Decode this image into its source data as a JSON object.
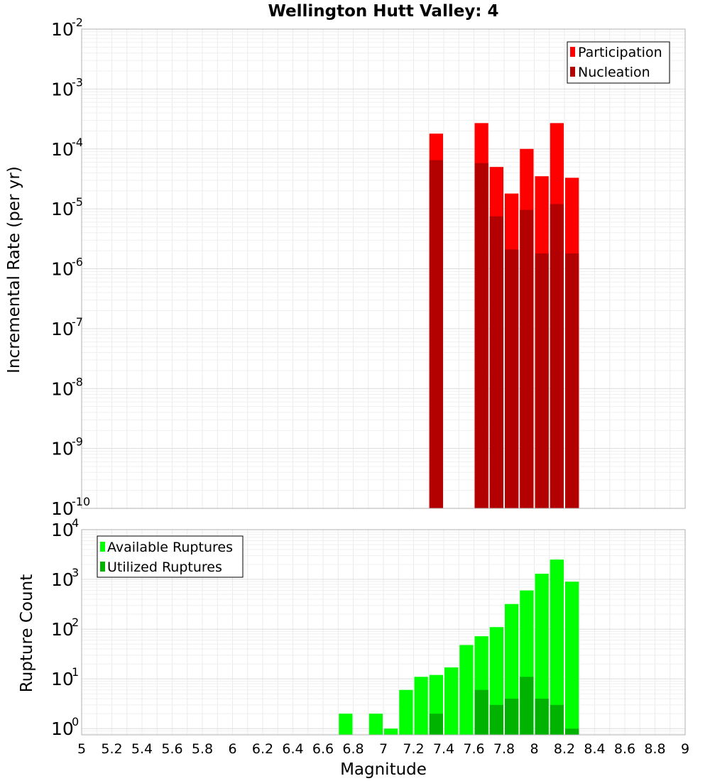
{
  "chart_data": [
    {
      "type": "bar",
      "title": "Wellington Hutt Valley: 4",
      "ylabel": "Incremental Rate (per yr)",
      "xlabel": "",
      "xlim": [
        5,
        9
      ],
      "y_scale": "log",
      "ylim": [
        1e-10,
        0.01
      ],
      "y_ticks": [
        {
          "base": "10",
          "exp": "-10"
        },
        {
          "base": "10",
          "exp": "-9"
        },
        {
          "base": "10",
          "exp": "-8"
        },
        {
          "base": "10",
          "exp": "-7"
        },
        {
          "base": "10",
          "exp": "-6"
        },
        {
          "base": "10",
          "exp": "-5"
        },
        {
          "base": "10",
          "exp": "-4"
        },
        {
          "base": "10",
          "exp": "-3"
        },
        {
          "base": "10",
          "exp": "-2"
        }
      ],
      "bar_width": 0.1,
      "grid": true,
      "legend_position": "top-right",
      "series": [
        {
          "name": "Participation",
          "color": "#ff0000",
          "x": [
            7.35,
            7.65,
            7.75,
            7.85,
            7.95,
            8.05,
            8.15,
            8.25
          ],
          "values": [
            0.00018,
            0.00027,
            5e-05,
            1.8e-05,
            0.0001,
            3.5e-05,
            0.00027,
            3.3e-05
          ]
        },
        {
          "name": "Nucleation",
          "color": "#b30000",
          "x": [
            7.35,
            7.65,
            7.75,
            7.85,
            7.95,
            8.05,
            8.15,
            8.25
          ],
          "values": [
            6.5e-05,
            5.8e-05,
            7.5e-06,
            2.1e-06,
            9.6e-06,
            1.8e-06,
            1.2e-05,
            1.8e-06
          ]
        }
      ]
    },
    {
      "type": "bar",
      "title": "",
      "ylabel": "Rupture Count",
      "xlabel": "Magnitude",
      "xlim": [
        5,
        9
      ],
      "x_ticks": [
        "5",
        "5.2",
        "5.4",
        "5.6",
        "5.8",
        "6",
        "6.2",
        "6.4",
        "6.6",
        "6.8",
        "7",
        "7.2",
        "7.4",
        "7.6",
        "7.8",
        "8",
        "8.2",
        "8.4",
        "8.6",
        "8.8",
        "9"
      ],
      "y_scale": "log",
      "ylim": [
        0.75,
        10000
      ],
      "y_ticks": [
        {
          "base": "10",
          "exp": "0"
        },
        {
          "base": "10",
          "exp": "1"
        },
        {
          "base": "10",
          "exp": "2"
        },
        {
          "base": "10",
          "exp": "3"
        },
        {
          "base": "10",
          "exp": "4"
        }
      ],
      "bar_width": 0.1,
      "grid": true,
      "legend_position": "top-left",
      "series": [
        {
          "name": "Available Ruptures",
          "color": "#00ff00",
          "x": [
            6.75,
            6.95,
            7.05,
            7.15,
            7.25,
            7.35,
            7.45,
            7.55,
            7.65,
            7.75,
            7.85,
            7.95,
            8.05,
            8.15,
            8.25
          ],
          "values": [
            2,
            2,
            1,
            6,
            11,
            12,
            17,
            48,
            72,
            110,
            320,
            600,
            1300,
            2500,
            900
          ]
        },
        {
          "name": "Utilized Ruptures",
          "color": "#00b300",
          "x": [
            7.35,
            7.65,
            7.75,
            7.85,
            7.95,
            8.05,
            8.15,
            8.25
          ],
          "values": [
            2,
            6,
            3,
            4,
            11,
            4,
            3,
            1
          ]
        }
      ]
    }
  ]
}
